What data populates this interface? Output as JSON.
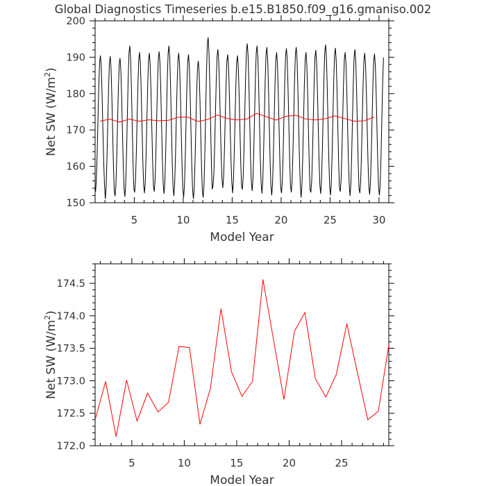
{
  "title": "Global Diagnostics Timeseries b.e15.B1850.f09_g16.gmaniso.002",
  "chart_data": [
    {
      "type": "line",
      "xlabel": "Model Year",
      "ylabel_main": "Net SW (W/m",
      "ylabel_sup": "2",
      "ylabel_close": ")",
      "xlim": [
        1.0,
        31.0
      ],
      "ylim": [
        150,
        200
      ],
      "x_ticks": [
        5,
        10,
        15,
        20,
        25,
        30
      ],
      "x_tick_labels": [
        "5",
        "10",
        "15",
        "20",
        "25",
        "30"
      ],
      "y_ticks": [
        150,
        160,
        170,
        180,
        190,
        200
      ],
      "y_tick_labels": [
        "150",
        "160",
        "170",
        "180",
        "190",
        "200"
      ],
      "series": [
        {
          "color": "#000000",
          "style": "monthly seasonal cycle",
          "x_start": 1.0417,
          "x_step": 0.083333,
          "annual_mean_amplitude": [
            [
              1.5,
              172.4,
              190.5,
              153.0
            ],
            [
              2.5,
              173.0,
              190.3,
              151.0
            ],
            [
              3.5,
              172.1,
              189.8,
              151.8
            ],
            [
              4.5,
              173.0,
              193.2,
              151.6
            ],
            [
              5.5,
              172.4,
              191.4,
              152.8
            ],
            [
              6.5,
              172.8,
              191.2,
              152.6
            ],
            [
              7.5,
              172.5,
              191.6,
              153.0
            ],
            [
              8.5,
              172.7,
              193.2,
              152.4
            ],
            [
              9.5,
              173.5,
              191.2,
              151.8
            ],
            [
              10.5,
              173.5,
              190.8,
              151.4
            ],
            [
              11.5,
              172.3,
              189.0,
              151.0
            ],
            [
              12.5,
              172.9,
              195.5,
              151.4
            ],
            [
              13.5,
              174.1,
              192.2,
              154.6
            ],
            [
              14.5,
              173.1,
              190.8,
              154.0
            ],
            [
              15.5,
              172.8,
              190.5,
              152.6
            ],
            [
              16.5,
              173.0,
              193.8,
              153.6
            ],
            [
              17.5,
              174.6,
              193.2,
              153.2
            ],
            [
              18.5,
              173.6,
              192.8,
              152.5
            ],
            [
              19.5,
              172.7,
              191.4,
              152.0
            ],
            [
              20.5,
              173.8,
              192.5,
              152.6
            ],
            [
              21.5,
              174.0,
              192.8,
              152.8
            ],
            [
              22.5,
              173.0,
              191.4,
              151.4
            ],
            [
              23.5,
              172.8,
              192.0,
              152.8
            ],
            [
              24.5,
              173.1,
              193.5,
              152.4
            ],
            [
              25.5,
              173.9,
              192.6,
              152.0
            ],
            [
              26.5,
              173.2,
              191.4,
              153.0
            ],
            [
              27.5,
              172.4,
              192.2,
              151.8
            ],
            [
              28.5,
              172.5,
              191.2,
              152.6
            ],
            [
              29.5,
              173.5,
              191.0,
              152.2
            ],
            [
              30.5,
              172.9,
              192.0,
              152.0
            ]
          ]
        },
        {
          "color": "#ff0000",
          "x": [
            1.5,
            2.5,
            3.5,
            4.5,
            5.5,
            6.5,
            7.5,
            8.5,
            9.5,
            10.5,
            11.5,
            12.5,
            13.5,
            14.5,
            15.5,
            16.5,
            17.5,
            18.5,
            19.5,
            20.5,
            21.5,
            22.5,
            23.5,
            24.5,
            25.5,
            26.5,
            27.5,
            28.5,
            29.5
          ],
          "y": [
            172.4,
            172.99,
            172.14,
            173.01,
            172.38,
            172.81,
            172.52,
            172.67,
            173.53,
            173.51,
            172.33,
            172.89,
            174.11,
            173.14,
            172.76,
            172.99,
            174.56,
            173.64,
            172.71,
            173.76,
            174.05,
            173.03,
            172.75,
            173.1,
            173.88,
            173.13,
            172.4,
            172.53,
            173.55
          ]
        }
      ]
    },
    {
      "type": "line",
      "xlabel": "Model Year",
      "ylabel_main": "Net SW (W/m",
      "ylabel_sup": "2",
      "ylabel_close": ")",
      "xlim": [
        1.5,
        29.5
      ],
      "ylim": [
        172.0,
        174.8
      ],
      "x_ticks": [
        5,
        10,
        15,
        20,
        25
      ],
      "x_tick_labels": [
        "5",
        "10",
        "15",
        "20",
        "25"
      ],
      "y_ticks": [
        172.0,
        172.5,
        173.0,
        173.5,
        174.0,
        174.5
      ],
      "y_tick_labels": [
        "172.0",
        "172.5",
        "173.0",
        "173.5",
        "174.0",
        "174.5"
      ],
      "series": [
        {
          "color": "#ff0000",
          "x": [
            1.5,
            2.5,
            3.5,
            4.5,
            5.5,
            6.5,
            7.5,
            8.5,
            9.5,
            10.5,
            11.5,
            12.5,
            13.5,
            14.5,
            15.5,
            16.5,
            17.5,
            18.5,
            19.5,
            20.5,
            21.5,
            22.5,
            23.5,
            24.5,
            25.5,
            26.5,
            27.5,
            28.5,
            29.5
          ],
          "y": [
            172.4,
            172.99,
            172.14,
            173.01,
            172.38,
            172.81,
            172.52,
            172.67,
            173.53,
            173.51,
            172.33,
            172.89,
            174.11,
            173.14,
            172.76,
            172.99,
            174.56,
            173.64,
            172.71,
            173.76,
            174.05,
            173.03,
            172.75,
            173.1,
            173.88,
            173.13,
            172.4,
            172.53,
            173.55
          ]
        }
      ]
    }
  ]
}
